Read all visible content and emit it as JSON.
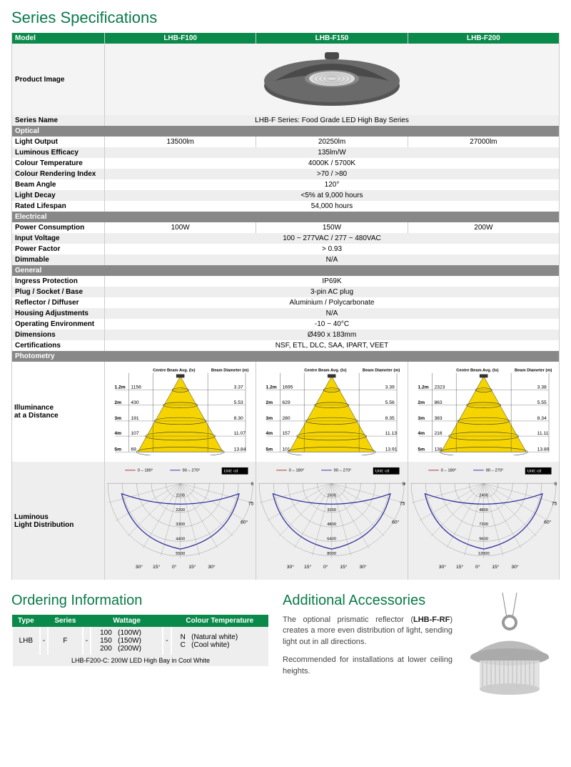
{
  "titles": {
    "specs": "Series Specifications",
    "ordering": "Ordering Information",
    "accessories": "Additional Accessories"
  },
  "header": {
    "model": "Model",
    "m1": "LHB-F100",
    "m2": "LHB-F150",
    "m3": "LHB-F200"
  },
  "rows": {
    "prodimg": "Product Image",
    "series": "Series Name",
    "series_val": "LHB-F Series: Food Grade LED High Bay Series",
    "optical": "Optical",
    "lightout": "Light Output",
    "lightout_v": [
      "13500lm",
      "20250lm",
      "27000lm"
    ],
    "lumeff": "Luminous Efficacy",
    "lumeff_v": "135lm/W",
    "ct": "Colour Temperature",
    "ct_v": "4000K / 5700K",
    "cri": "Colour Rendering Index",
    "cri_v": ">70 / >80",
    "beam": "Beam Angle",
    "beam_v": "120°",
    "decay": "Light Decay",
    "decay_v": "<5% at 9,000 hours",
    "life": "Rated Lifespan",
    "life_v": "54,000 hours",
    "electrical": "Electrical",
    "power": "Power Consumption",
    "power_v": [
      "100W",
      "150W",
      "200W"
    ],
    "volt": "Input Voltage",
    "volt_v": "100 ~ 277VAC / 277 ~ 480VAC",
    "pf": "Power Factor",
    "pf_v": "> 0.93",
    "dim": "Dimmable",
    "dim_v": "N/A",
    "general": "General",
    "ip": "Ingress Protection",
    "ip_v": "IP69K",
    "plug": "Plug / Socket / Base",
    "plug_v": "3-pin AC plug",
    "refl": "Reflector / Diffuser",
    "refl_v": "Aluminium / Polycarbonate",
    "adj": "Housing Adjustments",
    "adj_v": "N/A",
    "env": "Operating Environment",
    "env_v": "-10 ~ 40°C",
    "dims": "Dimensions",
    "dims_v": "Ø490 x 183mm",
    "cert": "Certifications",
    "cert_v": "NSF, ETL, DLC, SAA, IPART, VEET",
    "photometry": "Photometry",
    "illum": "Illuminance\nat a Distance",
    "lumdist": "Luminous\nLight Distribution"
  },
  "photo_hdr": {
    "a": "Centre Beam Avg. (lx)",
    "b": "Beam Diameter (m)"
  },
  "photo_dist": [
    "1.2m",
    "2m",
    "3m",
    "4m",
    "5m"
  ],
  "photo": [
    {
      "lx": [
        "1156",
        "430",
        "191",
        "107",
        "69"
      ],
      "dia": [
        "3.37",
        "5.53",
        "8.30",
        "11.07",
        "13.84"
      ]
    },
    {
      "lx": [
        "1695",
        "629",
        "280",
        "157",
        "101"
      ],
      "dia": [
        "3.39",
        "5.56",
        "8.35",
        "11.13",
        "13.91"
      ]
    },
    {
      "lx": [
        "2323",
        "863",
        "383",
        "216",
        "138"
      ],
      "dia": [
        "3.38",
        "5.55",
        "8.34",
        "11.11",
        "13.89"
      ]
    }
  ],
  "polar_rings": [
    [
      "1100",
      "2200",
      "3300",
      "4400",
      "5500"
    ],
    [
      "1600",
      "3200",
      "4800",
      "6400",
      "8000"
    ],
    [
      "2400",
      "4800",
      "7200",
      "9600",
      "12000"
    ]
  ],
  "polar_angles": [
    "90°",
    "75°",
    "60°",
    "30°",
    "15°",
    "0°",
    "15°",
    "30°"
  ],
  "polar_legend": {
    "a": "0 – 180°",
    "b": "90 – 270°"
  },
  "polar_unit": "Unit: cd",
  "order": {
    "hdr": [
      "Type",
      "",
      "Series",
      "",
      "Wattage",
      "",
      "Colour Temperature"
    ],
    "type": "LHB",
    "dash": "-",
    "series": "F",
    "watt": "100   (100W)\n150   (150W)\n200   (200W)",
    "ct": "N   (Natural white)\nC   (Cool white)",
    "example": "LHB-F200-C: 200W LED High Bay in Cool White"
  },
  "acc": {
    "p1a": "The optional prismatic reflector (",
    "p1b": "LHB-F-RF",
    "p1c": ") creates a more even distribution of light, sending light out in all directions.",
    "p2": "Recommended for installations at lower ceiling heights."
  },
  "colors": {
    "green": "#0a8a4a",
    "cone": "#f5d400",
    "polar_line": "#2a2a9a"
  }
}
